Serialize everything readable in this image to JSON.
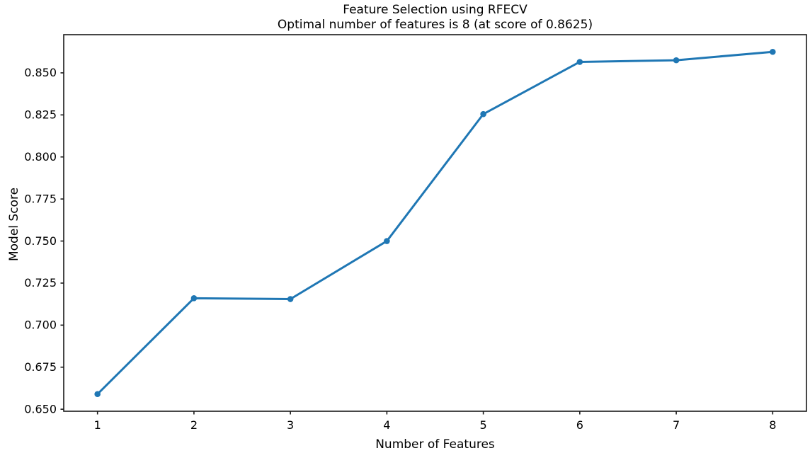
{
  "figure": {
    "title_line1": "Feature Selection using RFECV",
    "title_line2": "Optimal number of features is 8 (at score of 0.8625)"
  },
  "chart_data": {
    "type": "line",
    "title": "Feature Selection using RFECV\nOptimal number of features is 8 (at score of 0.8625)",
    "xlabel": "Number of Features",
    "ylabel": "Model Score",
    "x": [
      1,
      2,
      3,
      4,
      5,
      6,
      7,
      8
    ],
    "y": [
      0.659,
      0.716,
      0.7155,
      0.75,
      0.8255,
      0.8565,
      0.8575,
      0.8625
    ],
    "optimal_n_features": 8,
    "optimal_score": 0.8625,
    "xticks": [
      1,
      2,
      3,
      4,
      5,
      6,
      7,
      8
    ],
    "xtick_labels": [
      "1",
      "2",
      "3",
      "4",
      "5",
      "6",
      "7",
      "8"
    ],
    "yticks": [
      0.65,
      0.675,
      0.7,
      0.725,
      0.75,
      0.775,
      0.8,
      0.825,
      0.85
    ],
    "ytick_labels": [
      "0.650",
      "0.675",
      "0.700",
      "0.725",
      "0.750",
      "0.775",
      "0.800",
      "0.825",
      "0.850"
    ],
    "xlim": [
      0.65,
      8.35
    ],
    "ylim": [
      0.6488,
      0.8727
    ],
    "grid": false,
    "legend": null,
    "line_color": "#1f77b4",
    "marker": "o",
    "marker_size": 4.3,
    "line_width": 3,
    "spine_color": "#1a1a1a",
    "background": "#ffffff"
  }
}
